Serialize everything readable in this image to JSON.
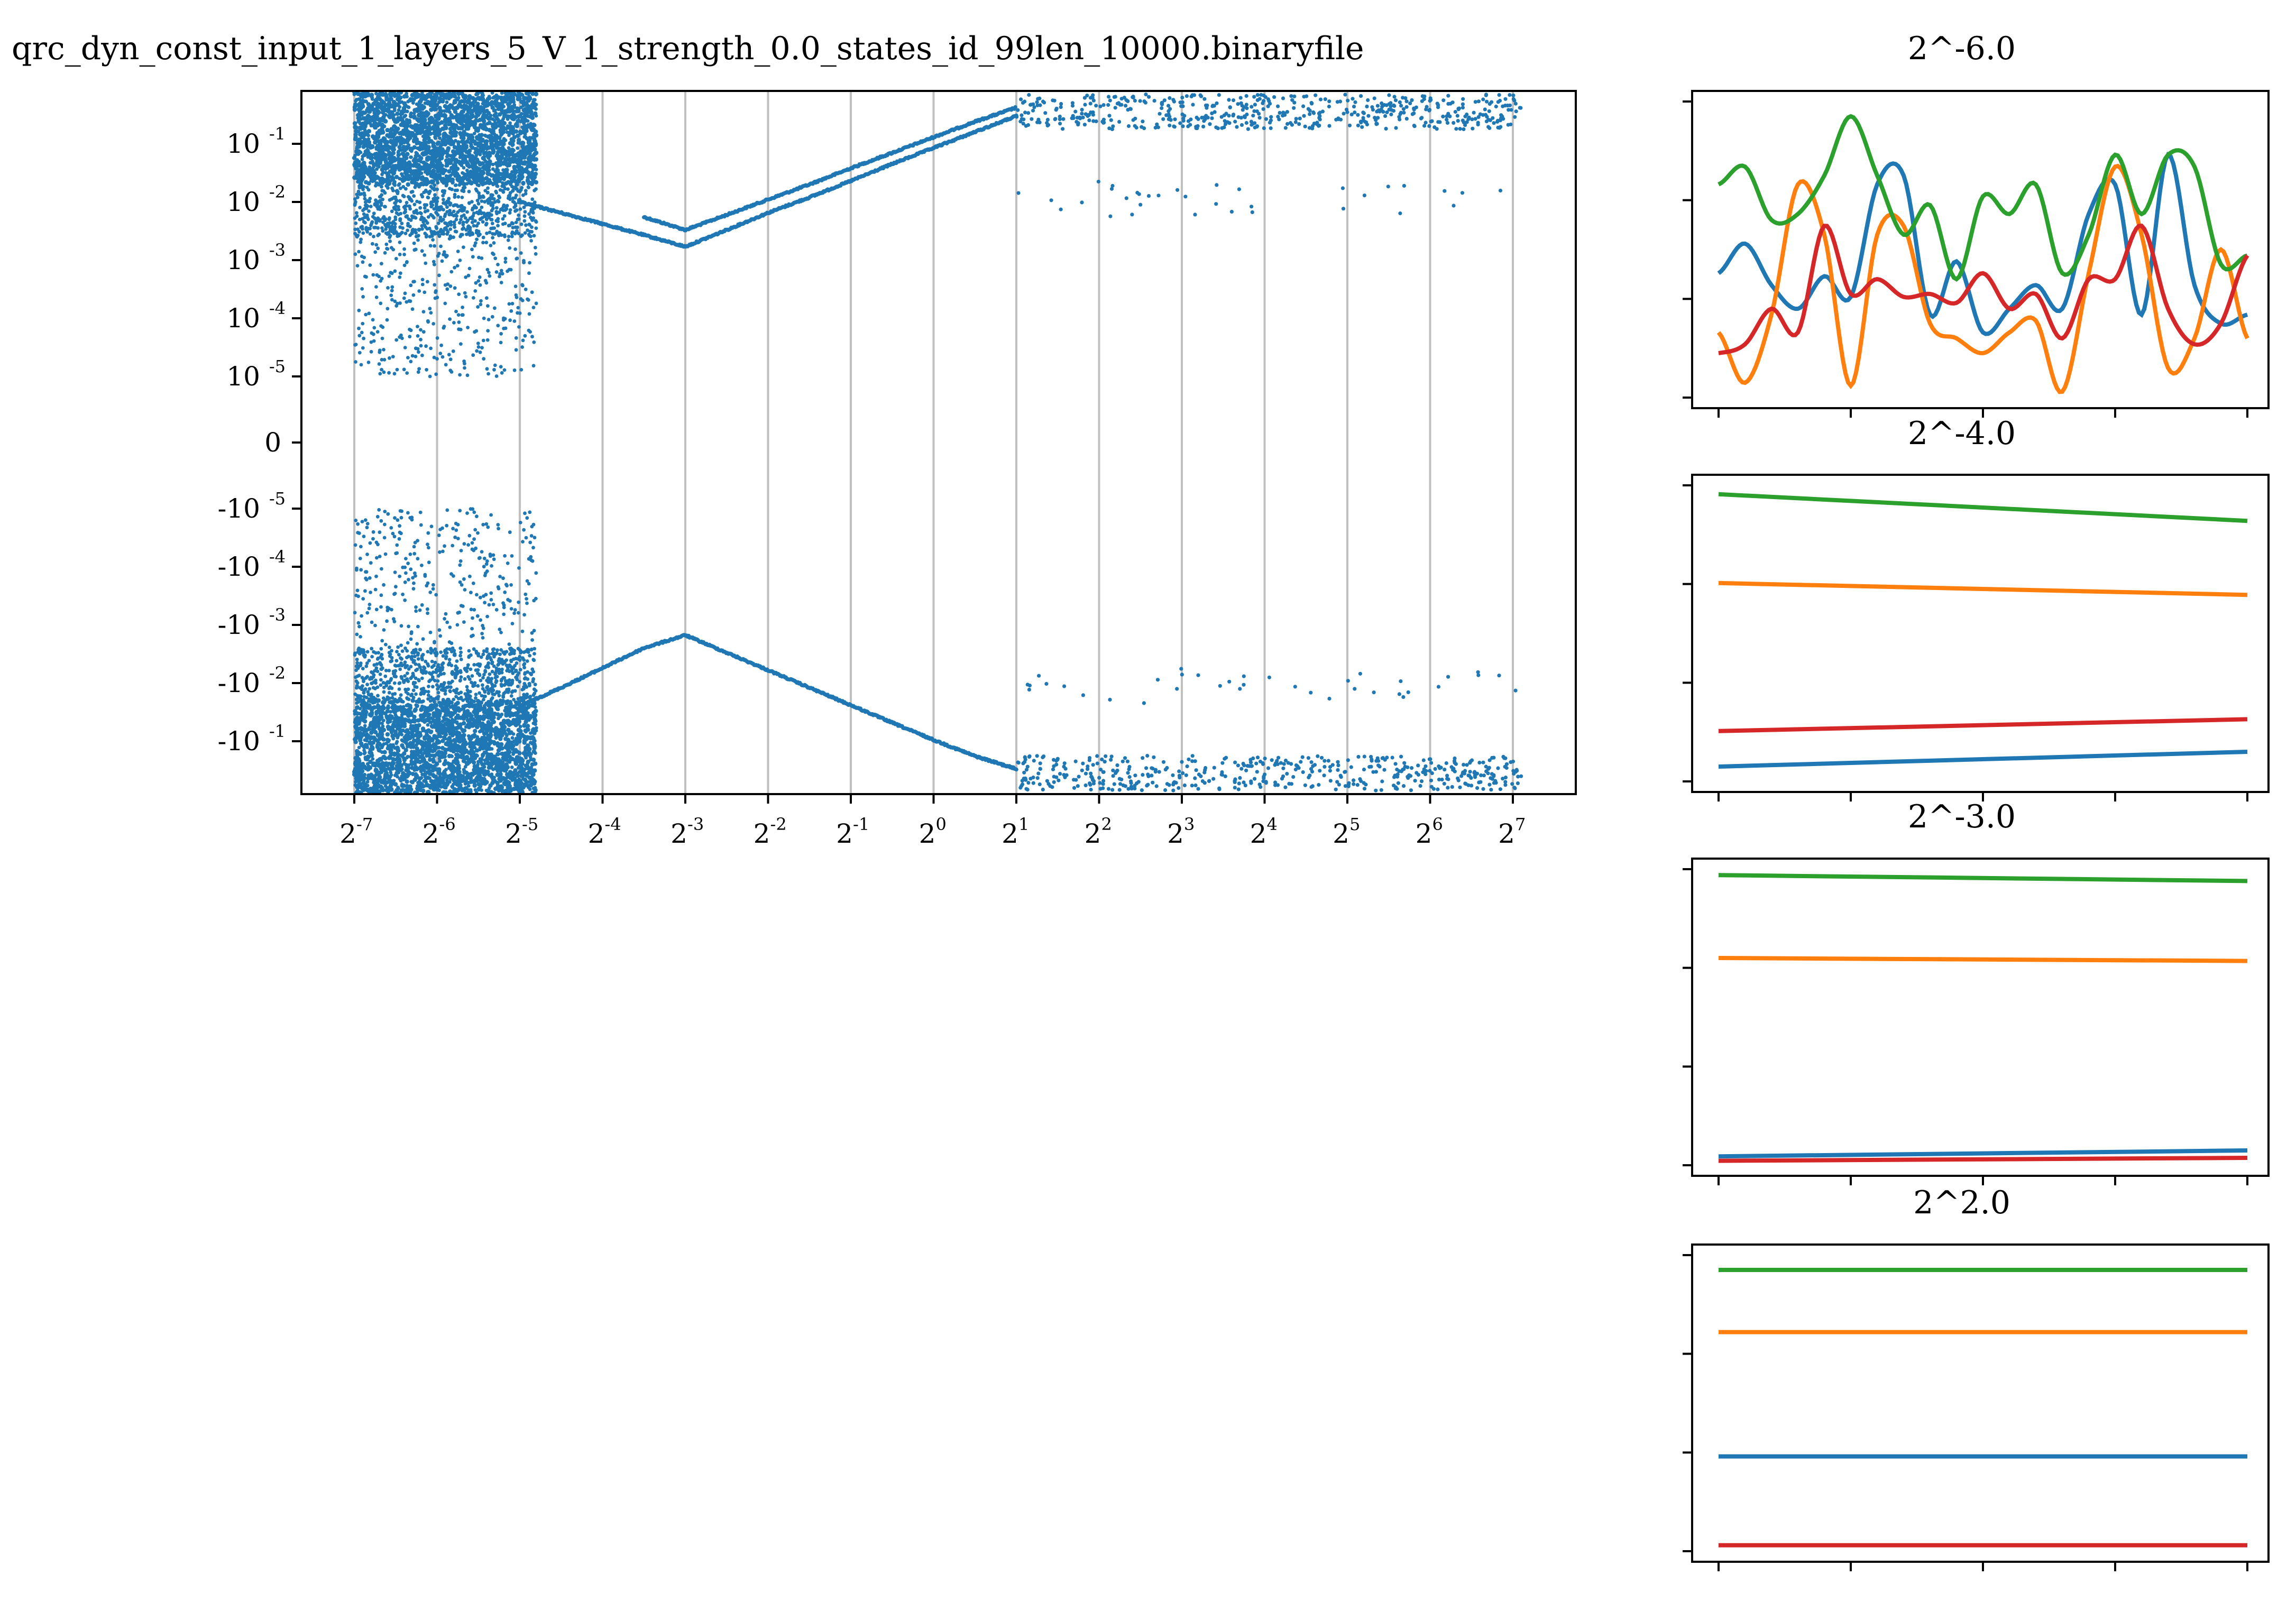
{
  "chart_data": [
    {
      "type": "scatter",
      "title": "qrc_dyn_const_input_1_layers_5_V_1_strength_0.0_states_id_99len_10000.binaryfile",
      "xlabel": "",
      "ylabel": "",
      "x_scale": "log2",
      "y_scale": "symlog",
      "xticks": [
        {
          "base": "2",
          "exp": "-7"
        },
        {
          "base": "2",
          "exp": "-6"
        },
        {
          "base": "2",
          "exp": "-5"
        },
        {
          "base": "2",
          "exp": "-4"
        },
        {
          "base": "2",
          "exp": "-3"
        },
        {
          "base": "2",
          "exp": "-2"
        },
        {
          "base": "2",
          "exp": "-1"
        },
        {
          "base": "2",
          "exp": "0"
        },
        {
          "base": "2",
          "exp": "1"
        },
        {
          "base": "2",
          "exp": "2"
        },
        {
          "base": "2",
          "exp": "3"
        },
        {
          "base": "2",
          "exp": "4"
        },
        {
          "base": "2",
          "exp": "5"
        },
        {
          "base": "2",
          "exp": "6"
        },
        {
          "base": "2",
          "exp": "7"
        }
      ],
      "yticks": [
        {
          "base": "10",
          "exp": "-1"
        },
        {
          "base": "10",
          "exp": "-2"
        },
        {
          "base": "10",
          "exp": "-3"
        },
        {
          "base": "10",
          "exp": "-4"
        },
        {
          "base": "10",
          "exp": "-5"
        },
        {
          "base": "0",
          "exp": ""
        },
        {
          "base": "-10",
          "exp": "-5"
        },
        {
          "base": "-10",
          "exp": "-4"
        },
        {
          "base": "-10",
          "exp": "-3"
        },
        {
          "base": "-10",
          "exp": "-2"
        },
        {
          "base": "-10",
          "exp": "-1"
        }
      ],
      "xlim": [
        -7.7,
        7.5
      ],
      "ylim": [
        -0.8,
        0.8
      ],
      "grid": "vertical lines at each power of two",
      "color": "#1f77b4",
      "series": [
        {
          "x_exp": [
            -3.5,
            -3.0,
            -2.5,
            -2.0,
            -1.5,
            -1.0,
            -0.5,
            0.0,
            0.5,
            1.0
          ],
          "values": [
            0.0055,
            0.0033,
            0.006,
            0.011,
            0.02,
            0.038,
            0.07,
            0.13,
            0.24,
            0.42
          ]
        },
        {
          "x_exp": [
            -5.0,
            -4.5,
            -4.0,
            -3.5,
            -3.0,
            -2.5,
            -2.0,
            -1.5,
            -1.0,
            -0.5,
            0.0,
            0.5,
            1.0
          ],
          "values": [
            0.01,
            0.0065,
            0.0042,
            0.0027,
            0.0017,
            0.0033,
            0.0065,
            0.012,
            0.023,
            0.045,
            0.085,
            0.16,
            0.3
          ]
        },
        {
          "x_exp": [
            -5.0,
            -4.5,
            -4.0,
            -3.5,
            -3.0,
            -2.5,
            -2.0,
            -1.5,
            -1.0,
            -0.5,
            0.0,
            0.5,
            1.0
          ],
          "values": [
            -0.025,
            -0.012,
            -0.0055,
            -0.0025,
            -0.0015,
            -0.003,
            -0.006,
            -0.012,
            -0.024,
            -0.048,
            -0.095,
            -0.18,
            -0.3
          ]
        }
      ]
    },
    {
      "type": "line",
      "title": "2^-6.0",
      "colors": [
        "#1f77b4",
        "#ff7f0e",
        "#2ca02c",
        "#d62728"
      ],
      "series": [
        {
          "values": [
            0.42,
            0.52,
            0.38,
            0.3,
            0.41,
            0.34,
            0.72,
            0.75,
            0.28,
            0.46,
            0.22,
            0.3,
            0.38,
            0.3,
            0.62,
            0.72,
            0.28,
            0.82,
            0.38,
            0.25,
            0.28
          ]
        },
        {
          "values": [
            0.22,
            0.05,
            0.28,
            0.72,
            0.55,
            0.04,
            0.55,
            0.58,
            0.25,
            0.2,
            0.15,
            0.22,
            0.26,
            0.02,
            0.42,
            0.78,
            0.55,
            0.1,
            0.2,
            0.5,
            0.2
          ]
        },
        {
          "values": [
            0.72,
            0.78,
            0.6,
            0.62,
            0.75,
            0.95,
            0.75,
            0.55,
            0.65,
            0.4,
            0.68,
            0.62,
            0.72,
            0.42,
            0.55,
            0.82,
            0.62,
            0.82,
            0.78,
            0.45,
            0.48
          ]
        },
        {
          "values": [
            0.15,
            0.18,
            0.3,
            0.22,
            0.58,
            0.35,
            0.4,
            0.34,
            0.35,
            0.32,
            0.42,
            0.3,
            0.35,
            0.2,
            0.4,
            0.4,
            0.58,
            0.3,
            0.18,
            0.25,
            0.48
          ]
        }
      ]
    },
    {
      "type": "line",
      "title": "2^-4.0",
      "colors": [
        "#1f77b4",
        "#ff7f0e",
        "#2ca02c",
        "#d62728"
      ],
      "series": [
        {
          "values": [
            0.05,
            0.1
          ]
        },
        {
          "values": [
            0.67,
            0.63
          ]
        },
        {
          "values": [
            0.97,
            0.88
          ]
        },
        {
          "values": [
            0.17,
            0.21
          ]
        }
      ]
    },
    {
      "type": "line",
      "title": "2^-3.0",
      "colors": [
        "#1f77b4",
        "#ff7f0e",
        "#2ca02c",
        "#d62728"
      ],
      "series": [
        {
          "values": [
            0.03,
            0.05
          ]
        },
        {
          "values": [
            0.7,
            0.69
          ]
        },
        {
          "values": [
            0.98,
            0.96
          ]
        },
        {
          "values": [
            0.015,
            0.025
          ]
        }
      ]
    },
    {
      "type": "line",
      "title": "2^2.0",
      "colors": [
        "#1f77b4",
        "#ff7f0e",
        "#2ca02c",
        "#d62728"
      ],
      "series": [
        {
          "values": [
            0.32,
            0.32
          ]
        },
        {
          "values": [
            0.74,
            0.74
          ]
        },
        {
          "values": [
            0.95,
            0.95
          ]
        },
        {
          "values": [
            0.02,
            0.02
          ]
        }
      ]
    }
  ]
}
